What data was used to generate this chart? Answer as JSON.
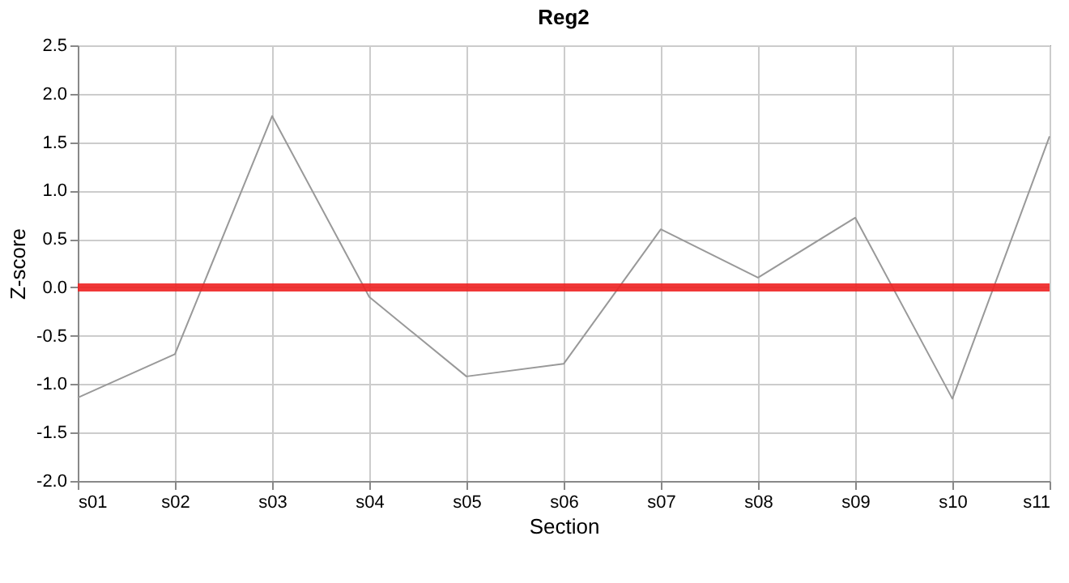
{
  "chart_data": {
    "type": "line",
    "title": "Reg2",
    "xlabel": "Section",
    "ylabel": "Z-score",
    "categories": [
      "s01",
      "s02",
      "s03",
      "s04",
      "s05",
      "s06",
      "s07",
      "s08",
      "s09",
      "s10",
      "s11"
    ],
    "series": [
      {
        "color": "#999999",
        "values": [
          -1.14,
          -0.69,
          1.77,
          -0.1,
          -0.92,
          -0.79,
          0.6,
          0.1,
          0.72,
          -1.15,
          1.56
        ]
      }
    ],
    "ylim": [
      -2.0,
      2.5
    ],
    "yticks": [
      {
        "value": -2,
        "label": "-2.0"
      },
      {
        "value": -1.5,
        "label": "-1.5"
      },
      {
        "value": -1,
        "label": "-1.0"
      },
      {
        "value": -0.5,
        "label": "-0.5"
      },
      {
        "value": 0,
        "label": "0.0"
      },
      {
        "value": 0.5,
        "label": "0.5"
      },
      {
        "value": 1,
        "label": "1.0"
      },
      {
        "value": 1.5,
        "label": "1.5"
      },
      {
        "value": 2,
        "label": "2.0"
      },
      {
        "value": 2.5,
        "label": "2.5"
      }
    ],
    "ref_lines": [
      {
        "axis": "y",
        "value": 0,
        "color": "#ee2222"
      }
    ],
    "grid": true,
    "marker": "none",
    "line_style": "solid"
  }
}
